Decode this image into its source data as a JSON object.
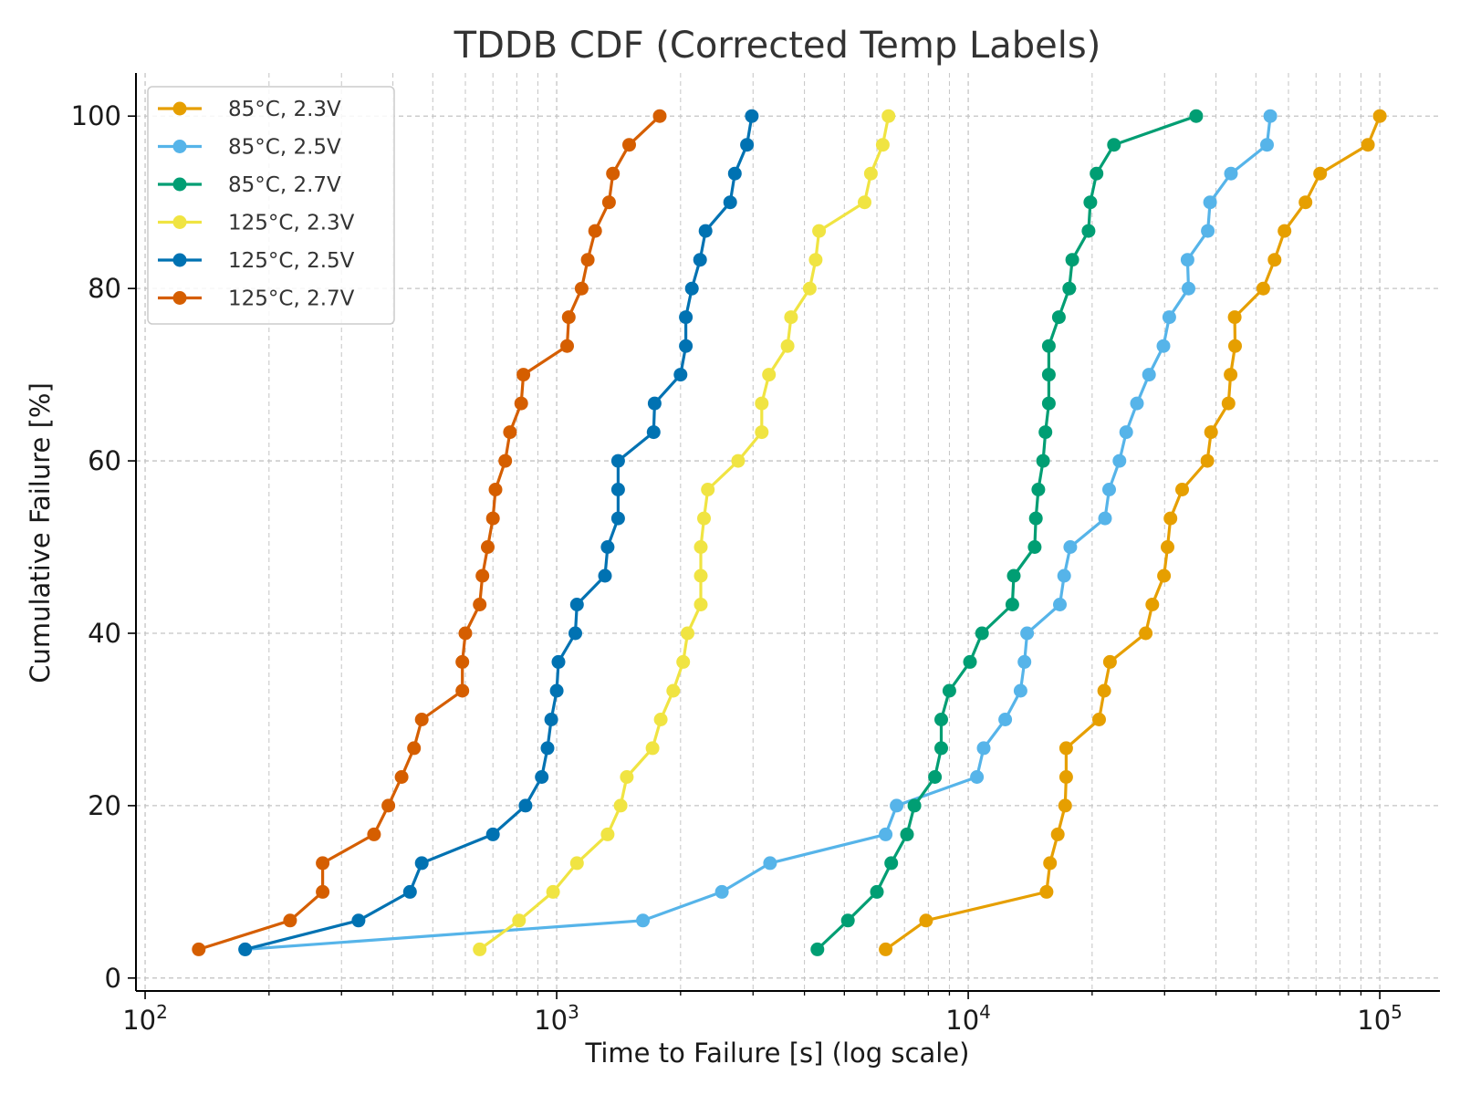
{
  "chart_data": {
    "type": "line",
    "title": "TDDB CDF (Corrected Temp Labels)",
    "xlabel": "Time to Failure [s] (log scale)",
    "ylabel": "Cumulative Failure [%]",
    "xscale": "log",
    "xlim": [
      95,
      140000
    ],
    "ylim": [
      -1.5,
      105
    ],
    "x_ticks": [
      100,
      1000,
      10000,
      100000
    ],
    "x_tick_labels": [
      {
        "base": "10",
        "exp": "2"
      },
      {
        "base": "10",
        "exp": "3"
      },
      {
        "base": "10",
        "exp": "4"
      },
      {
        "base": "10",
        "exp": "5"
      }
    ],
    "y_ticks": [
      0,
      20,
      40,
      60,
      80,
      100
    ],
    "y_tick_labels": [
      "0",
      "20",
      "40",
      "60",
      "80",
      "100"
    ],
    "grid": true,
    "legend_position": "top-left",
    "y": [
      3.33,
      6.67,
      10.0,
      13.33,
      16.67,
      20.0,
      23.33,
      26.67,
      30.0,
      33.33,
      36.67,
      40.0,
      43.33,
      46.67,
      50.0,
      53.33,
      56.67,
      60.0,
      63.33,
      66.67,
      70.0,
      73.33,
      76.67,
      80.0,
      83.33,
      86.67,
      90.0,
      93.33,
      96.67,
      100.0
    ],
    "series": [
      {
        "name": "85°C, 2.3V",
        "color": "#e69f00",
        "x": [
          6300,
          7900,
          15500,
          15800,
          16500,
          17200,
          17300,
          17300,
          20800,
          21400,
          22100,
          27000,
          28000,
          29900,
          30500,
          31000,
          33100,
          38100,
          38900,
          42900,
          43400,
          44500,
          44400,
          52100,
          55500,
          58700,
          66000,
          71600,
          93600,
          100000
        ]
      },
      {
        "name": "85°C, 2.5V",
        "color": "#56b4e9",
        "x": [
          175,
          1620,
          2520,
          3300,
          6300,
          6700,
          10500,
          10900,
          12300,
          13400,
          13700,
          13900,
          16700,
          17100,
          17700,
          21500,
          22000,
          23300,
          24200,
          25700,
          27500,
          29800,
          30800,
          34300,
          34100,
          38200,
          38700,
          43500,
          53200,
          54200
        ]
      },
      {
        "name": "85°C, 2.7V",
        "color": "#009e73",
        "x": [
          4300,
          5100,
          6000,
          6500,
          7100,
          7400,
          8300,
          8600,
          8600,
          9000,
          10100,
          10800,
          12800,
          12900,
          14500,
          14600,
          14800,
          15200,
          15400,
          15700,
          15700,
          15700,
          16600,
          17600,
          17900,
          19600,
          19800,
          20500,
          22600,
          35800
        ]
      },
      {
        "name": "125°C, 2.3V",
        "color": "#f0e442",
        "x": [
          650,
          810,
          980,
          1120,
          1330,
          1430,
          1480,
          1710,
          1790,
          1920,
          2030,
          2080,
          2240,
          2240,
          2240,
          2280,
          2330,
          2760,
          3150,
          3150,
          3280,
          3640,
          3710,
          4120,
          4260,
          4340,
          5600,
          5800,
          6200,
          6400
        ]
      },
      {
        "name": "125°C, 2.5V",
        "color": "#0072b2",
        "x": [
          175,
          330,
          440,
          470,
          700,
          840,
          920,
          950,
          970,
          1000,
          1010,
          1110,
          1120,
          1310,
          1330,
          1410,
          1410,
          1410,
          1720,
          1730,
          2000,
          2060,
          2060,
          2130,
          2230,
          2300,
          2640,
          2710,
          2900,
          2980
        ]
      },
      {
        "name": "125°C, 2.7V",
        "color": "#d55e00",
        "x": [
          135,
          225,
          270,
          270,
          360,
          390,
          420,
          450,
          470,
          590,
          590,
          600,
          650,
          660,
          680,
          700,
          710,
          750,
          770,
          820,
          830,
          1060,
          1070,
          1150,
          1190,
          1240,
          1340,
          1370,
          1500,
          1780
        ]
      }
    ]
  }
}
